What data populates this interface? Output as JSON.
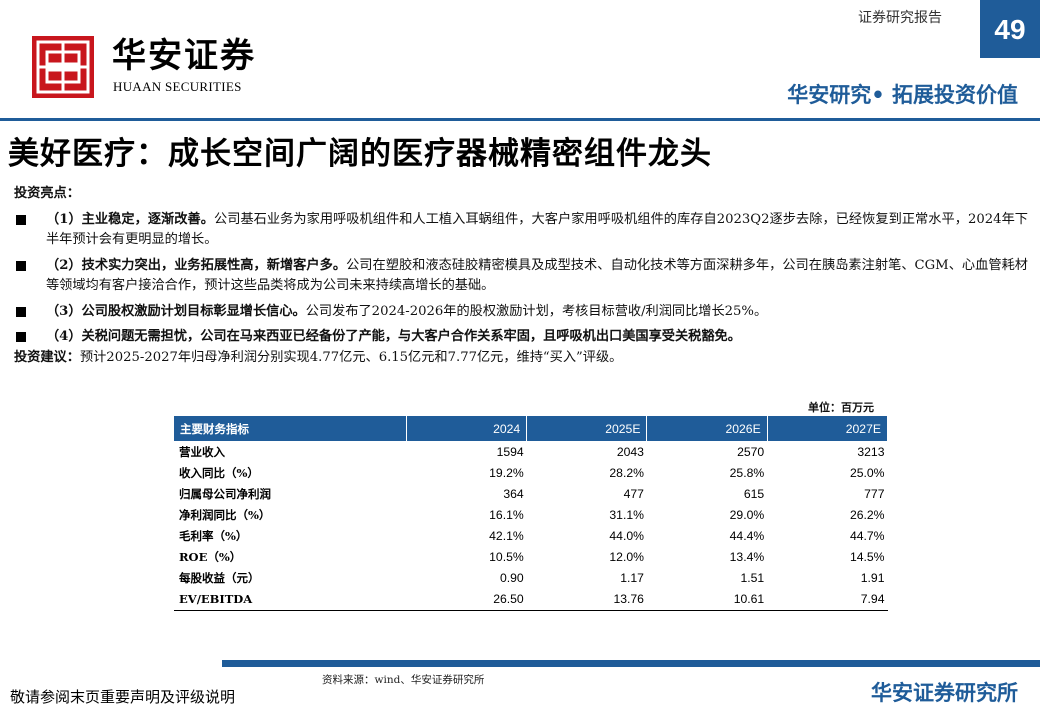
{
  "header": {
    "brand_cn": "华安证券",
    "brand_en": "HUAAN SECURITIES",
    "report_type": "证券研究报告",
    "page_number": "49",
    "slogan": "华安研究• 拓展投资价值",
    "brand_color": "#1f5c99",
    "logo_color": "#c8161d"
  },
  "title": "美好医疗：成长空间广阔的医疗器械精密组件龙头",
  "highlights": {
    "label": "投资亮点：",
    "items": [
      {
        "bold": "（1）主业稳定，逐渐改善。",
        "text": "公司基石业务为家用呼吸机组件和人工植入耳蜗组件，大客户家用呼吸机组件的库存自2023Q2逐步去除，已经恢复到正常水平，2024年下半年预计会有更明显的增长。"
      },
      {
        "bold": "（2）技术实力突出，业务拓展性高，新增客户多。",
        "text": "公司在塑胶和液态硅胶精密模具及成型技术、自动化技术等方面深耕多年，公司在胰岛素注射笔、CGM、心血管耗材等领域均有客户接洽合作，预计这些品类将成为公司未来持续高增长的基础。"
      },
      {
        "bold": "（3）公司股权激励计划目标彰显增长信心。",
        "text": "公司发布了2024-2026年的股权激励计划，考核目标营收/利润同比增长25%。"
      },
      {
        "bold": "（4）关税问题无需担忧，公司在马来西亚已经备份了产能，与大客户合作关系牢固，且呼吸机出口美国享受关税豁免。",
        "text": ""
      }
    ]
  },
  "advice": {
    "label": "投资建议：",
    "text": "预计2025-2027年归母净利润分别实现4.77亿元、6.15亿元和7.77亿元，维持“买入”评级。"
  },
  "table": {
    "unit": "单位：百万元",
    "columns": [
      "主要财务指标",
      "2024",
      "2025E",
      "2026E",
      "2027E"
    ],
    "rows": [
      [
        "营业收入",
        "1594",
        "2043",
        "2570",
        "3213"
      ],
      [
        "收入同比（%）",
        "19.2%",
        "28.2%",
        "25.8%",
        "25.0%"
      ],
      [
        "归属母公司净利润",
        "364",
        "477",
        "615",
        "777"
      ],
      [
        "净利润同比（%）",
        "16.1%",
        "31.1%",
        "29.0%",
        "26.2%"
      ],
      [
        "毛利率（%）",
        "42.1%",
        "44.0%",
        "44.4%",
        "44.7%"
      ],
      [
        "ROE（%）",
        "10.5%",
        "12.0%",
        "13.4%",
        "14.5%"
      ],
      [
        "每股收益（元）",
        "0.90",
        "1.17",
        "1.51",
        "1.91"
      ],
      [
        "EV/EBITDA",
        "26.50",
        "13.76",
        "10.61",
        "7.94"
      ]
    ]
  },
  "footer": {
    "source": "资料来源：wind、华安证券研究所",
    "disclaimer": "敬请参阅末页重要声明及评级说明",
    "brand": "华安证券研究所"
  }
}
